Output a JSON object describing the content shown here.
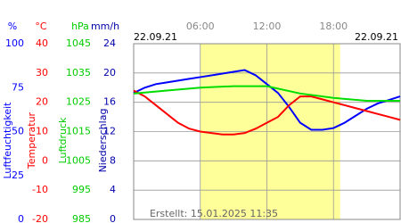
{
  "chart_data": {
    "type": "line",
    "date_start": "22.09.21",
    "date_end": "22.09.21",
    "footer": "Erstellt: 15.01.2025 11:35",
    "xlim": [
      0,
      24
    ],
    "xticks": [
      {
        "value": 6,
        "label": "06:00"
      },
      {
        "value": 12,
        "label": "12:00"
      },
      {
        "value": 18,
        "label": "18:00"
      }
    ],
    "daylight": [
      6,
      18.6
    ],
    "daylight_color": "#ffff99",
    "axes": [
      {
        "unit": "%",
        "label": "Luftfeuchtigkeit",
        "color": "#0000ff",
        "lim": [
          0,
          100
        ],
        "ticks": [
          0,
          25,
          50,
          75,
          100
        ],
        "grid": false
      },
      {
        "unit": "°C",
        "label": "Temperatur",
        "color": "#ff0000",
        "lim": [
          -20,
          40
        ],
        "ticks": [
          -20,
          -10,
          0,
          10,
          20,
          30,
          40
        ],
        "grid": true
      },
      {
        "unit": "hPa",
        "label": "Luftdruck",
        "color": "#00cc00",
        "lim": [
          985,
          1045
        ],
        "ticks": [
          985,
          995,
          1005,
          1015,
          1025,
          1035,
          1045
        ],
        "grid": false
      },
      {
        "unit": "mm/h",
        "label": "Niederschlag",
        "color": "#0000aa",
        "lim": [
          0,
          24
        ],
        "ticks": [
          0,
          4,
          8,
          12,
          16,
          20,
          24
        ],
        "grid": false
      }
    ],
    "series": [
      {
        "axis": 0,
        "color": "#0000ff",
        "x": [
          0,
          1,
          2,
          3,
          4,
          5,
          6,
          7,
          8,
          9,
          10,
          11,
          12,
          13,
          14,
          15,
          16,
          17,
          18,
          19,
          20,
          21,
          22,
          23,
          24
        ],
        "values": [
          72,
          75,
          77,
          78,
          79,
          80,
          81,
          82,
          83,
          84,
          85,
          82,
          77,
          72,
          64,
          55,
          51,
          51,
          52,
          55,
          59,
          63,
          66,
          68,
          70
        ]
      },
      {
        "axis": 1,
        "color": "#ff0000",
        "x": [
          0,
          1,
          2,
          3,
          4,
          5,
          6,
          7,
          8,
          9,
          10,
          11,
          12,
          13,
          14,
          15,
          16,
          17,
          18,
          19,
          20,
          21,
          22,
          23,
          24
        ],
        "values": [
          24,
          22,
          19,
          16,
          13,
          11,
          10,
          9.5,
          9,
          9,
          9.5,
          11,
          13,
          15,
          19,
          22,
          22,
          21,
          20,
          19,
          18,
          17,
          16,
          15,
          14
        ]
      },
      {
        "axis": 2,
        "color": "#00dd00",
        "x": [
          0,
          3,
          6,
          9,
          12,
          15,
          18,
          21,
          24
        ],
        "values": [
          1028,
          1029,
          1030,
          1030.5,
          1030.5,
          1028,
          1026.5,
          1025.5,
          1025.5
        ]
      }
    ]
  }
}
